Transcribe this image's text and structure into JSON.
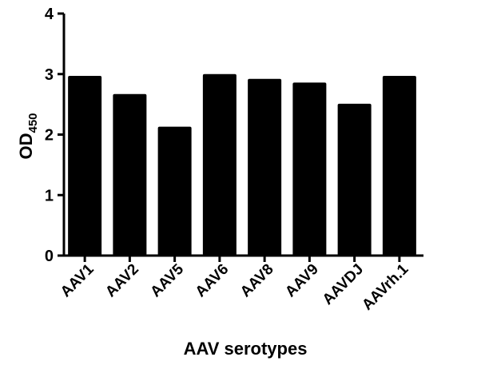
{
  "chart_data": {
    "type": "bar",
    "categories": [
      "AAV1",
      "AAV2",
      "AAV5",
      "AAV6",
      "AAV8",
      "AAV9",
      "AAVDJ",
      "AAVrh.1"
    ],
    "values": [
      2.97,
      2.67,
      2.13,
      3.0,
      2.92,
      2.86,
      2.51,
      2.97
    ],
    "title": "",
    "xlabel": "AAV serotypes",
    "ylabel": "OD",
    "ylabel_subscript": "450",
    "ylim": [
      0,
      4
    ],
    "yticks": [
      "0",
      "1",
      "2",
      "3",
      "4"
    ],
    "grid": false,
    "legend": "none",
    "bar_color": "#000000"
  }
}
